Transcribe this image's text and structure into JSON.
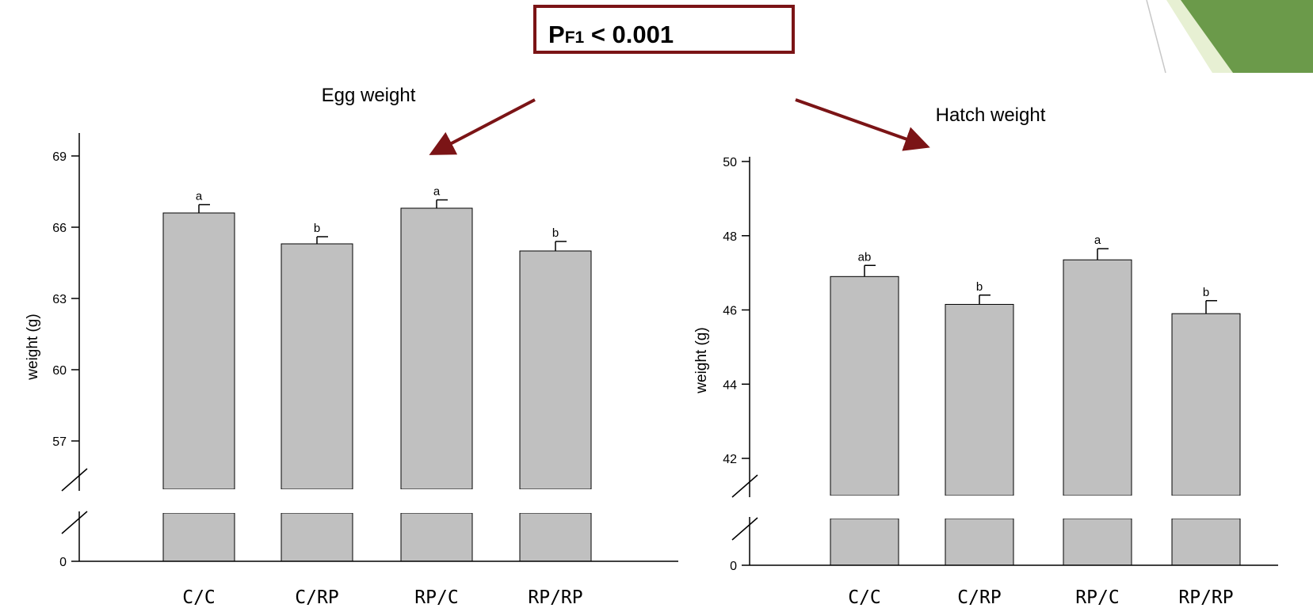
{
  "annotation": {
    "p_label": "P",
    "p_subscript": "F1",
    "p_rest": " < 0.001",
    "border_color": "#7b1416"
  },
  "colors": {
    "bar_fill": "#c0c0c0",
    "arrow": "#7b1416",
    "accent_green": "#6b9a4a",
    "accent_light_green": "#e7f0d3"
  },
  "chart_data": [
    {
      "type": "bar",
      "title": "Egg weight",
      "ylabel": "weight (g)",
      "xlabel": "",
      "categories": [
        "C/C",
        "C/RP",
        "RP/C",
        "RP/RP"
      ],
      "values": [
        66.6,
        65.3,
        66.8,
        65.0
      ],
      "errors": [
        0.35,
        0.3,
        0.35,
        0.4
      ],
      "significance_labels": [
        "a",
        "b",
        "a",
        "b"
      ],
      "yticks": [
        0,
        57,
        60,
        63,
        66,
        69
      ],
      "ylim": [
        55,
        70
      ],
      "axis_break": true
    },
    {
      "type": "bar",
      "title": "Hatch weight",
      "ylabel": "weight (g)",
      "xlabel": "",
      "categories": [
        "C/C",
        "C/RP",
        "RP/C",
        "RP/RP"
      ],
      "values": [
        46.9,
        46.15,
        47.35,
        45.9
      ],
      "errors": [
        0.3,
        0.25,
        0.3,
        0.35
      ],
      "significance_labels": [
        "ab",
        "b",
        "a",
        "b"
      ],
      "yticks": [
        0,
        42,
        44,
        46,
        48,
        50
      ],
      "ylim": [
        41.5,
        50
      ],
      "axis_break": true
    }
  ]
}
